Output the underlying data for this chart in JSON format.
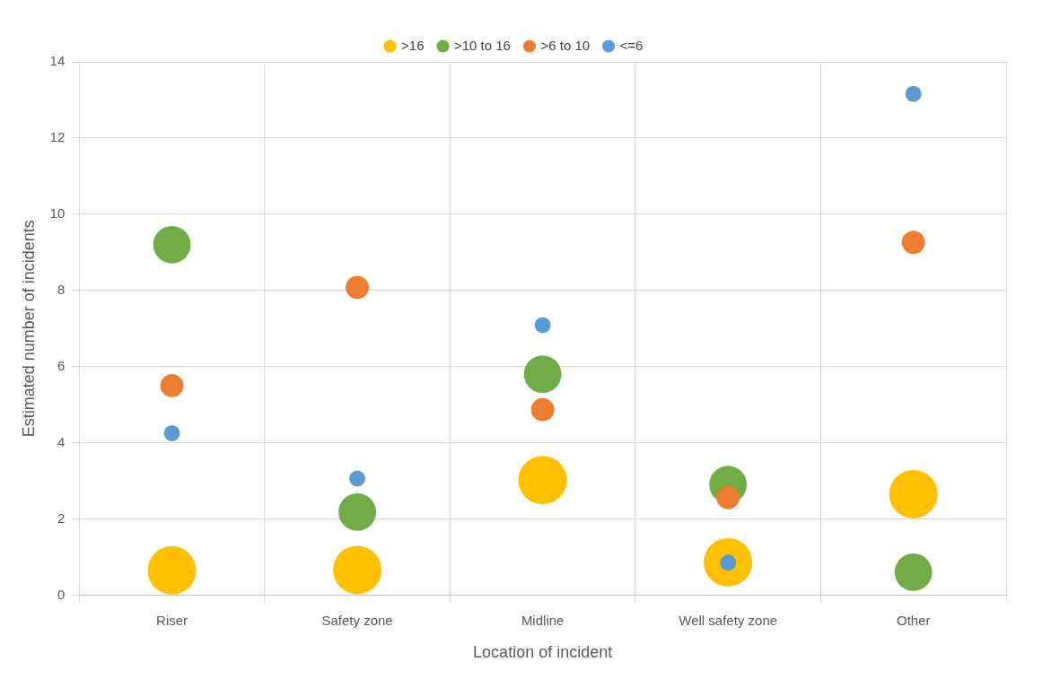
{
  "chart_data": {
    "type": "bubble",
    "xlabel": "Location of incident",
    "ylabel": "Estimated number of incidents",
    "categories": [
      "Riser",
      "Safety zone",
      "Midline",
      "Well safety zone",
      "Other"
    ],
    "ylim": [
      0,
      14
    ],
    "yticks": [
      0,
      2,
      4,
      6,
      8,
      10,
      12,
      14
    ],
    "grid": true,
    "legend": "top",
    "series": [
      {
        "name": ">16",
        "color": "#ffc000",
        "values": [
          0.65,
          0.66,
          3.02,
          0.86,
          2.65
        ],
        "sizes": [
          1,
          1,
          1,
          1,
          1
        ]
      },
      {
        "name": ">10 to 16",
        "color": "#70ad47",
        "values": [
          9.2,
          2.18,
          5.8,
          2.9,
          0.6
        ],
        "sizes": [
          0.6,
          0.6,
          0.6,
          0.6,
          0.6
        ]
      },
      {
        "name": ">6 to 10",
        "color": "#ed7d31",
        "values": [
          5.5,
          8.08,
          4.87,
          2.56,
          9.26
        ],
        "sizes": [
          0.23,
          0.23,
          0.23,
          0.23,
          0.23
        ]
      },
      {
        "name": "<=6",
        "color": "#5b9bd5",
        "values": [
          4.25,
          3.06,
          7.09,
          0.85,
          13.16
        ],
        "sizes": [
          0.11,
          0.11,
          0.11,
          0.11,
          0.11
        ]
      }
    ]
  }
}
